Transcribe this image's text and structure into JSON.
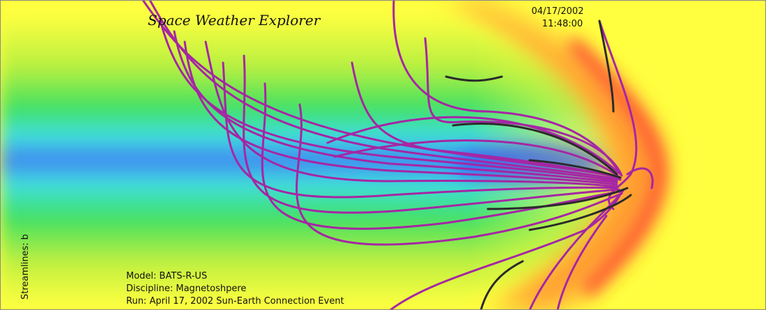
{
  "title": "Space Weather Explorer",
  "timestamp": {
    "date": "04/17/2002",
    "time": "11:48:00"
  },
  "side_label": "Streamlines: b",
  "info": {
    "model": "Model: BATS-R-US",
    "discipline": "Discipline: Magnetoshpere",
    "run": "Run: April 17, 2002 Sun-Earth Connection Event"
  }
}
